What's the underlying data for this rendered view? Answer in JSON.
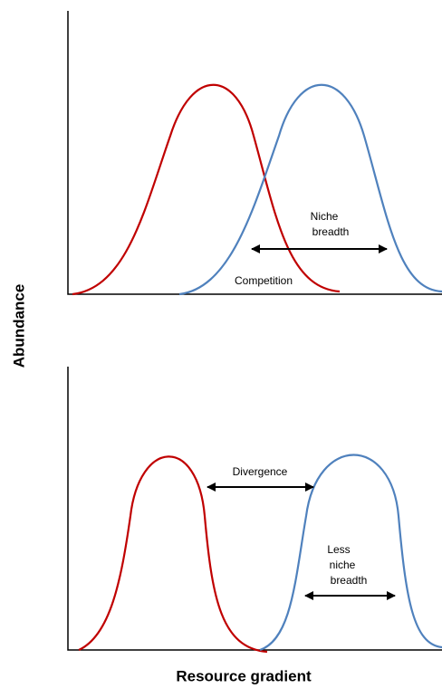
{
  "axes": {
    "y_label": "Abundance",
    "x_label": "Resource gradient"
  },
  "panels": [
    {
      "niche_breadth": [
        "Niche",
        "breadth"
      ],
      "competition": "Competition"
    },
    {
      "divergence": "Divergence",
      "less_niche_breadth": [
        "Less",
        "niche",
        "breadth"
      ]
    }
  ]
}
